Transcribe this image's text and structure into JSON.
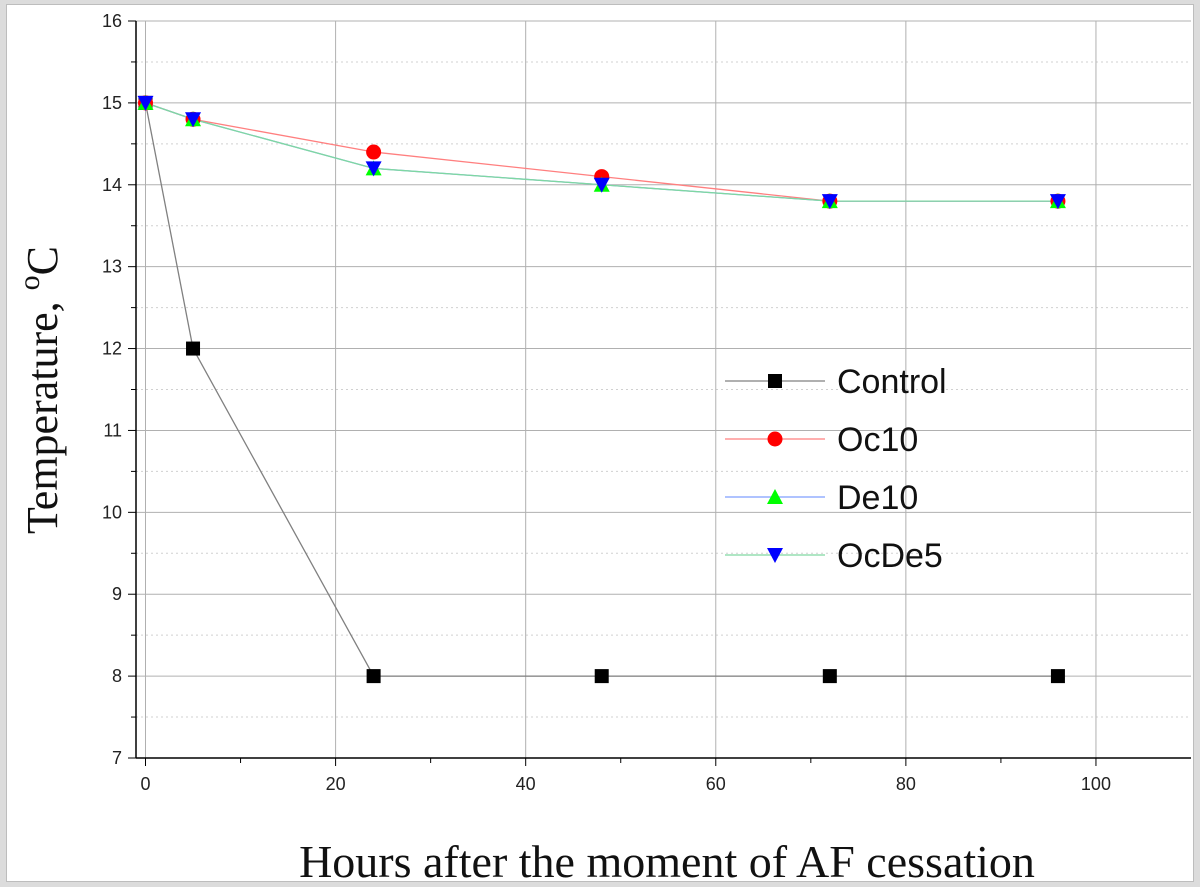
{
  "chart_data": {
    "type": "line",
    "xlabel": "Hours after the moment of AF cessation",
    "ylabel_main": "Temperature, ",
    "ylabel_sup": "o",
    "ylabel_unit": "C",
    "xlim": [
      -1,
      110
    ],
    "ylim": [
      7,
      16
    ],
    "xticks": [
      0,
      20,
      40,
      60,
      80,
      100
    ],
    "yticks": [
      7,
      8,
      9,
      10,
      11,
      12,
      13,
      14,
      15,
      16
    ],
    "grid": true,
    "legend_position": "right-middle",
    "series": [
      {
        "name": "Control",
        "color": "#000000",
        "line_color": "#808080",
        "marker": "square",
        "x": [
          0,
          5,
          24,
          48,
          72,
          96
        ],
        "y": [
          15,
          12,
          8,
          8,
          8,
          8
        ]
      },
      {
        "name": "Oc10",
        "color": "#ff0000",
        "line_color": "#ff7f7f",
        "marker": "circle",
        "x": [
          0,
          5,
          24,
          48,
          72,
          96
        ],
        "y": [
          15,
          14.8,
          14.4,
          14.1,
          13.8,
          13.8
        ]
      },
      {
        "name": "De10",
        "color": "#00ff00",
        "line_color": "#7f9fff",
        "marker": "triangle-up",
        "x": [
          0,
          5,
          24,
          48,
          72,
          96
        ],
        "y": [
          15,
          14.8,
          14.2,
          14.0,
          13.8,
          13.8
        ]
      },
      {
        "name": "OcDe5",
        "color": "#0000ff",
        "line_color": "#7fd8a0",
        "marker": "triangle-down",
        "x": [
          0,
          5,
          24,
          48,
          72,
          96
        ],
        "y": [
          15,
          14.8,
          14.2,
          14.0,
          13.8,
          13.8
        ]
      }
    ]
  }
}
